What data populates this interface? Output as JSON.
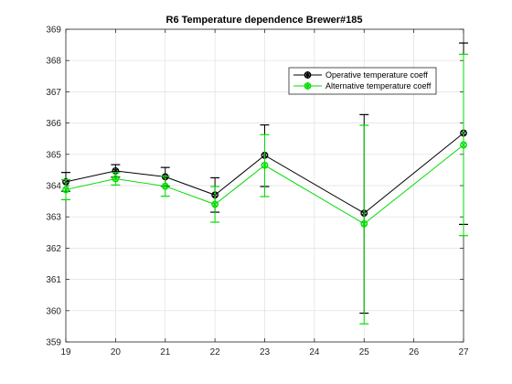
{
  "chart_data": {
    "type": "line",
    "title": "R6 Temperature dependence Brewer#185",
    "xlabel": "",
    "ylabel": "",
    "xlim": [
      19,
      27
    ],
    "ylim": [
      359,
      369
    ],
    "xticks": [
      19,
      20,
      21,
      22,
      23,
      24,
      25,
      26,
      27
    ],
    "yticks": [
      359,
      360,
      361,
      362,
      363,
      364,
      365,
      366,
      367,
      368,
      369
    ],
    "grid": true,
    "legend_position": "top-right",
    "series": [
      {
        "name": "Operative temperature coeff",
        "color": "#000000",
        "marker": "circle-x",
        "x": [
          19,
          20,
          21,
          22,
          23,
          25,
          27
        ],
        "y": [
          364.12,
          364.47,
          364.28,
          363.7,
          364.97,
          363.12,
          365.68
        ],
        "err_low": [
          0.3,
          0.2,
          0.3,
          0.55,
          1.0,
          3.2,
          2.92
        ],
        "err_high": [
          0.3,
          0.2,
          0.3,
          0.55,
          0.97,
          3.15,
          2.88
        ]
      },
      {
        "name": "Alternative temperature coeff",
        "color": "#00dd00",
        "marker": "circle-x",
        "x": [
          19,
          20,
          21,
          22,
          23,
          25,
          27
        ],
        "y": [
          363.87,
          364.22,
          363.98,
          363.4,
          364.65,
          362.78,
          365.3
        ],
        "err_low": [
          0.32,
          0.2,
          0.32,
          0.57,
          1.0,
          3.2,
          2.9
        ],
        "err_high": [
          0.32,
          0.2,
          0.32,
          0.57,
          0.98,
          3.15,
          2.9
        ]
      }
    ]
  }
}
